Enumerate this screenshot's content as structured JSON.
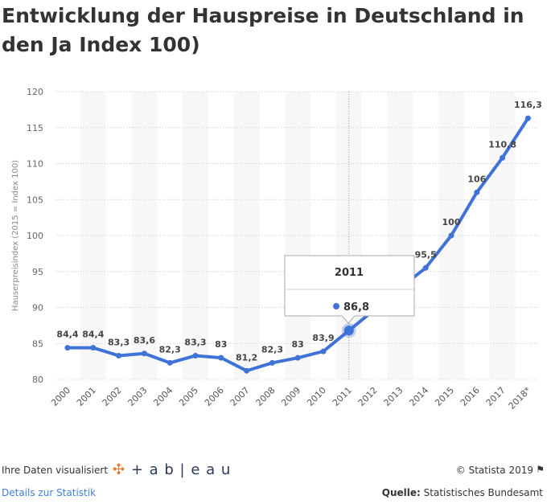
{
  "title": "Entwicklung der Hauspreise in Deutschland in den Ja Index 100)",
  "chart_data": {
    "type": "line",
    "ylabel": "Hauserpreisindex (2015 = Index 100)",
    "categories": [
      "2000",
      "2001",
      "2002",
      "2003",
      "2004",
      "2005",
      "2006",
      "2007",
      "2008",
      "2009",
      "2010",
      "2011",
      "2012",
      "2013",
      "2014",
      "2015",
      "2016",
      "2017",
      "2018*"
    ],
    "values": [
      84.4,
      84.4,
      83.3,
      83.6,
      82.3,
      83.3,
      83,
      81.2,
      82.3,
      83,
      83.9,
      86.8,
      89.7,
      92.7,
      95.5,
      100,
      106,
      110.8,
      116.3
    ],
    "data_labels": [
      "84,4",
      "84,4",
      "83,3",
      "83,6",
      "82,3",
      "83,3",
      "83",
      "81,2",
      "82,3",
      "83",
      "83,9",
      "",
      "",
      "",
      "95,5",
      "100",
      "106",
      "110,8",
      "116,3"
    ],
    "ylim": [
      80,
      120
    ],
    "yticks": [
      80,
      85,
      90,
      95,
      100,
      105,
      110,
      115,
      120
    ],
    "grid": true,
    "series_color": "#3f73d8",
    "tooltip": {
      "category": "2011",
      "value": "86,8"
    }
  },
  "footer": {
    "visualized": "Ihre Daten visualisiert",
    "tableau": "+ a b | e a u",
    "copyright": "© Statista 2019",
    "details_link": "Details zur Statistik",
    "source_label": "Quelle:",
    "source": "Statistisches Bundesamt"
  }
}
